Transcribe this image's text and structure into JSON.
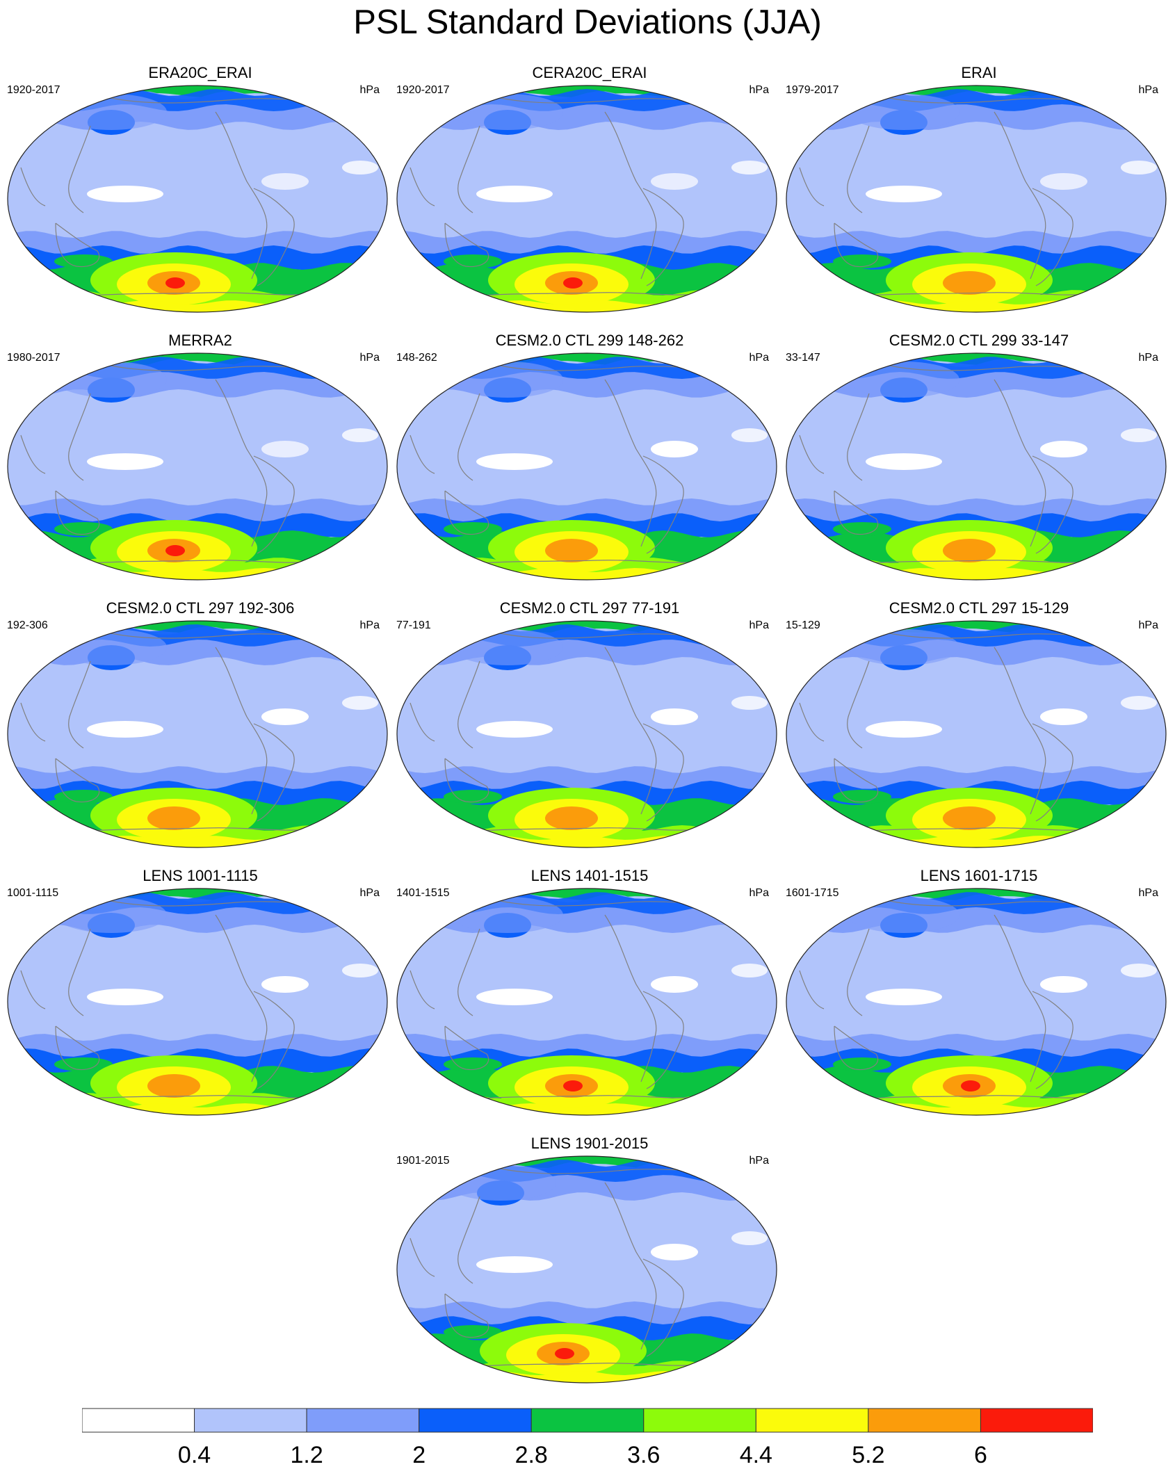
{
  "title": "PSL Standard Deviations (JJA)",
  "units": "hPa",
  "colors": {
    "levels": [
      "#ffffff",
      "#b1c4fb",
      "#7f9dfa",
      "#0a5ffa",
      "#0bc341",
      "#8dfb0b",
      "#fbfb0b",
      "#fb9c0b",
      "#fb1b0b"
    ],
    "coastline": "#808080"
  },
  "panels": [
    {
      "title": "ERA20C_ERAI",
      "years": "1920-2017",
      "units": "hPa",
      "max_level": 8
    },
    {
      "title": "CERA20C_ERAI",
      "years": "1920-2017",
      "units": "hPa",
      "max_level": 8
    },
    {
      "title": "ERAI",
      "years": "1979-2017",
      "units": "hPa",
      "max_level": 7
    },
    {
      "title": "MERRA2",
      "years": "1980-2017",
      "units": "hPa",
      "max_level": 8
    },
    {
      "title": "CESM2.0 CTL 299 148-262",
      "years": "148-262",
      "units": "hPa",
      "max_level": 7
    },
    {
      "title": "CESM2.0 CTL 299 33-147",
      "years": "33-147",
      "units": "hPa",
      "max_level": 7
    },
    {
      "title": "CESM2.0 CTL 297 192-306",
      "years": "192-306",
      "units": "hPa",
      "max_level": 7
    },
    {
      "title": "CESM2.0 CTL 297 77-191",
      "years": "77-191",
      "units": "hPa",
      "max_level": 7
    },
    {
      "title": "CESM2.0 CTL 297 15-129",
      "years": "15-129",
      "units": "hPa",
      "max_level": 7
    },
    {
      "title": "LENS 1001-1115",
      "years": "1001-1115",
      "units": "hPa",
      "max_level": 7
    },
    {
      "title": "LENS 1401-1515",
      "years": "1401-1515",
      "units": "hPa",
      "max_level": 8
    },
    {
      "title": "LENS 1601-1715",
      "years": "1601-1715",
      "units": "hPa",
      "max_level": 8
    },
    {
      "title": "LENS 1901-2015",
      "years": "1901-2015",
      "units": "hPa",
      "max_level": 8
    }
  ],
  "colorbar": {
    "labels": [
      "0.4",
      "1.2",
      "2",
      "2.8",
      "3.6",
      "4.4",
      "5.2",
      "6"
    ]
  }
}
